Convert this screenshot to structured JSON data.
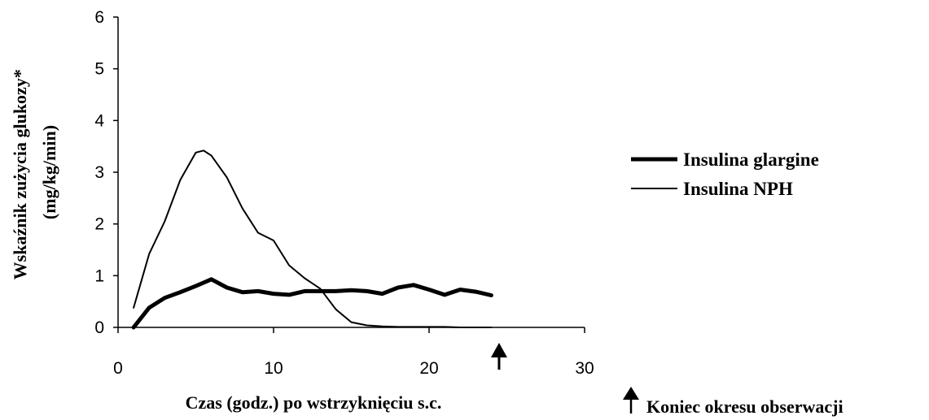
{
  "chart_data": {
    "type": "line",
    "title": "",
    "xlabel": "Czas (godz.) po wstrzyknięciu s.c.",
    "ylabel_line1": "Wskaźnik zużycia glukozy*",
    "ylabel_line2": "(mg/kg/min)",
    "xlim": [
      0,
      30
    ],
    "ylim": [
      0,
      6
    ],
    "xticks": [
      0,
      10,
      20,
      30
    ],
    "yticks": [
      0,
      1,
      2,
      3,
      4,
      5,
      6
    ],
    "grid": false,
    "legend_position": "right",
    "series": [
      {
        "name": "Insulina glargine",
        "style": "thick",
        "color": "#000000",
        "x": [
          1,
          2,
          3,
          4,
          5,
          6,
          7,
          8,
          9,
          10,
          11,
          12,
          13,
          14,
          15,
          16,
          17,
          18,
          19,
          20,
          21,
          22,
          23,
          24
        ],
        "y": [
          0.0,
          0.38,
          0.57,
          0.68,
          0.8,
          0.93,
          0.77,
          0.68,
          0.7,
          0.65,
          0.63,
          0.7,
          0.7,
          0.7,
          0.72,
          0.7,
          0.65,
          0.77,
          0.82,
          0.73,
          0.63,
          0.73,
          0.69,
          0.62
        ]
      },
      {
        "name": "Insulina NPH",
        "style": "thin",
        "color": "#000000",
        "x": [
          1,
          2,
          3,
          4,
          5,
          5.5,
          6,
          7,
          8,
          9,
          10,
          11,
          12,
          13,
          14,
          15,
          16,
          17,
          18,
          19,
          20,
          21,
          22,
          23,
          24
        ],
        "y": [
          0.38,
          1.42,
          2.05,
          2.85,
          3.38,
          3.42,
          3.32,
          2.9,
          2.3,
          1.83,
          1.68,
          1.2,
          0.95,
          0.75,
          0.35,
          0.1,
          0.04,
          0.02,
          0.01,
          0.01,
          0.01,
          0.01,
          0.0,
          0.0,
          0.0
        ]
      }
    ],
    "marker": {
      "x": 24.5,
      "symbol": "arrow-up"
    },
    "note": "Koniec okresu obserwacji"
  }
}
